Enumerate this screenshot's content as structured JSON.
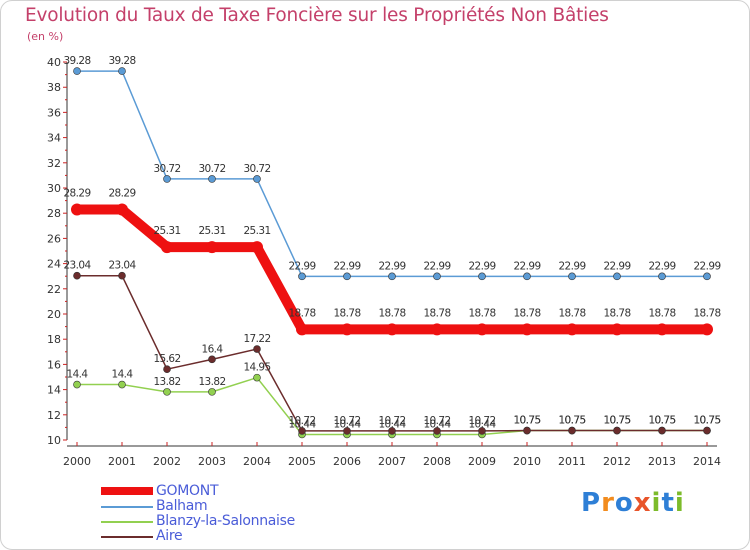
{
  "header": {
    "title": "Evolution du Taux de Taxe Foncière sur les Propriétés Non Bâties",
    "subtitle": "(en %)"
  },
  "brand": {
    "name": "Proxiti"
  },
  "chart_data": {
    "type": "line",
    "title": "Evolution du Taux de Taxe Foncière sur les Propriétés Non Bâties",
    "ylabel": "(en %)",
    "xlabel": "",
    "ylim": [
      10,
      40
    ],
    "yticks": [
      10,
      12,
      14,
      16,
      18,
      20,
      22,
      24,
      26,
      28,
      30,
      32,
      34,
      36,
      38,
      40
    ],
    "grid": false,
    "legend_position": "bottom-left",
    "x": [
      2000,
      2001,
      2002,
      2003,
      2004,
      2005,
      2006,
      2007,
      2008,
      2009,
      2010,
      2011,
      2012,
      2013,
      2014
    ],
    "series": [
      {
        "name": "GOMONT",
        "color": "#ee1111",
        "values": [
          28.29,
          28.29,
          25.31,
          25.31,
          25.31,
          18.78,
          18.78,
          18.78,
          18.78,
          18.78,
          18.78,
          18.78,
          18.78,
          18.78,
          18.78
        ],
        "labels": [
          "28.29",
          "28.29",
          "25.31",
          "25.31",
          "25.31",
          "18.78",
          "18.78",
          "18.78",
          "18.78",
          "18.78",
          "18.78",
          "18.78",
          "18.78",
          "18.78",
          "18.78"
        ]
      },
      {
        "name": "Balham",
        "color": "#5b9bd5",
        "values": [
          39.28,
          39.28,
          30.72,
          30.72,
          30.72,
          22.99,
          22.99,
          22.99,
          22.99,
          22.99,
          22.99,
          22.99,
          22.99,
          22.99,
          22.99
        ],
        "labels": [
          "39.28",
          "39.28",
          "30.72",
          "30.72",
          "30.72",
          "22.99",
          "22.99",
          "22.99",
          "22.99",
          "22.99",
          "22.99",
          "22.99",
          "22.99",
          "22.99",
          "22.99"
        ]
      },
      {
        "name": "Blanzy-la-Salonnaise",
        "color": "#92d050",
        "values": [
          14.4,
          14.4,
          13.82,
          13.82,
          14.95,
          10.44,
          10.44,
          10.44,
          10.44,
          10.44,
          10.75,
          10.75,
          10.75,
          10.75,
          10.75
        ],
        "labels": [
          "14.4",
          "14.4",
          "13.82",
          "13.82",
          "14.95",
          "10.44",
          "10.44",
          "10.44",
          "10.44",
          "10.44",
          "10.75",
          "10.75",
          "10.75",
          "10.75",
          "10.75"
        ]
      },
      {
        "name": "Aire",
        "color": "#6b2c2c",
        "values": [
          23.04,
          23.04,
          15.62,
          16.4,
          17.22,
          10.72,
          10.72,
          10.72,
          10.72,
          10.72,
          10.75,
          10.75,
          10.75,
          10.75,
          10.75
        ],
        "labels": [
          "23.04",
          "23.04",
          "15.62",
          "16.4",
          "17.22",
          "10.72",
          "10.72",
          "10.72",
          "10.72",
          "10.72",
          "10.75",
          "10.75",
          "10.75",
          "10.75",
          "10.75"
        ]
      }
    ]
  }
}
